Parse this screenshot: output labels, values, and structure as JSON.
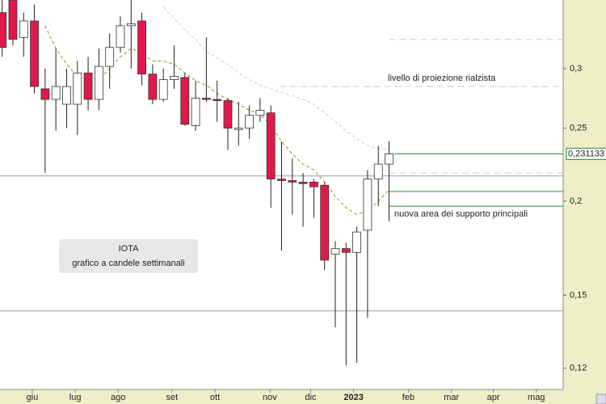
{
  "chart_data": {
    "type": "candlestick",
    "x": [
      0,
      1,
      2,
      3,
      4,
      5,
      6,
      7,
      8,
      9,
      10,
      11,
      12,
      13,
      14,
      15,
      16,
      17,
      18,
      19,
      20,
      21,
      22,
      23,
      24,
      25,
      26,
      27,
      28,
      29,
      30,
      31,
      32,
      33,
      34,
      35,
      36
    ],
    "open": [
      0.356,
      0.37,
      0.33,
      0.347,
      0.282,
      0.273,
      0.269,
      0.269,
      0.296,
      0.273,
      0.302,
      0.32,
      0.342,
      0.347,
      0.295,
      0.273,
      0.29,
      0.292,
      0.252,
      0.274,
      0.273,
      0.272,
      0.249,
      0.25,
      0.26,
      0.262,
      0.214,
      0.213,
      0.212,
      0.212,
      0.21,
      0.17,
      0.173,
      0.171,
      0.183,
      0.214,
      0.224
    ],
    "high": [
      0.37,
      0.37,
      0.356,
      0.365,
      0.3,
      0.319,
      0.3,
      0.307,
      0.311,
      0.319,
      0.334,
      0.352,
      0.37,
      0.356,
      0.304,
      0.3,
      0.322,
      0.296,
      0.289,
      0.33,
      0.289,
      0.274,
      0.271,
      0.268,
      0.274,
      0.268,
      0.24,
      0.228,
      0.218,
      0.214,
      0.212,
      0.177,
      0.176,
      0.185,
      0.22,
      0.237,
      0.24
    ],
    "low": [
      0.311,
      0.322,
      0.311,
      0.278,
      0.218,
      0.248,
      0.25,
      0.245,
      0.264,
      0.264,
      0.282,
      0.315,
      0.3,
      0.285,
      0.269,
      0.271,
      0.282,
      0.252,
      0.248,
      0.271,
      0.255,
      0.234,
      0.237,
      0.242,
      0.255,
      0.196,
      0.172,
      0.192,
      0.185,
      0.19,
      0.162,
      0.136,
      0.121,
      0.122,
      0.14,
      0.197,
      0.188
    ],
    "close": [
      0.32,
      0.328,
      0.347,
      0.284,
      0.273,
      0.284,
      0.284,
      0.296,
      0.273,
      0.302,
      0.32,
      0.342,
      0.344,
      0.295,
      0.273,
      0.29,
      0.293,
      0.253,
      0.274,
      0.273,
      0.272,
      0.25,
      0.25,
      0.26,
      0.264,
      0.214,
      0.213,
      0.212,
      0.211,
      0.209,
      0.167,
      0.173,
      0.171,
      0.182,
      0.214,
      0.224,
      0.231133
    ],
    "up_color": "#ffffff",
    "down_color": "#e0194b",
    "lines": [
      {
        "color": "#a8a040",
        "values": [
          null,
          null,
          null,
          null,
          0.342,
          0.319,
          0.304,
          0.293,
          0.289,
          0.29,
          0.3,
          0.311,
          0.319,
          0.315,
          0.307,
          0.307,
          0.304,
          0.296,
          0.289,
          0.285,
          0.278,
          0.273,
          0.269,
          0.264,
          0.261,
          0.252,
          0.24,
          0.231,
          0.224,
          0.22,
          0.212,
          0.203,
          0.196,
          0.192,
          0.194,
          0.2,
          0.207
        ]
      },
      {
        "color": "#f0c8c8",
        "values": [
          null,
          null,
          null,
          null,
          null,
          null,
          null,
          null,
          null,
          null,
          null,
          null,
          null,
          null,
          null,
          0.362,
          0.35,
          0.338,
          0.328,
          0.316,
          0.31,
          0.304,
          0.296,
          0.29,
          0.285,
          0.282,
          0.279,
          0.276,
          0.273,
          0.269,
          0.262,
          0.255,
          0.248,
          0.242,
          0.237,
          0.235,
          0.234
        ]
      }
    ],
    "levels": [
      {
        "value": 0.216,
        "from_x": -0.2,
        "color": "#999999",
        "dash": false
      },
      {
        "value": 0.143,
        "from_x": -0.2,
        "color": "#999999",
        "dash": false
      },
      {
        "value": 0.328,
        "from_x": 36,
        "color": "#cccccc",
        "dash": true
      },
      {
        "value": 0.284,
        "from_x": 25.8,
        "color": "#cccccc",
        "dash": true
      },
      {
        "value": 0.218,
        "from_x": 36,
        "color": "#cccccc",
        "dash": true
      },
      {
        "value": 0.231133,
        "from_x": 36.5,
        "color": "#2e8b2e",
        "dash": false
      },
      {
        "value": 0.206,
        "from_x": 36,
        "color": "#2e8b2e",
        "dash": false
      },
      {
        "value": 0.197,
        "from_x": 36,
        "color": "#2e8b2e",
        "dash": false
      }
    ],
    "price_tag": {
      "value": 0.231133,
      "label": "0,231133"
    },
    "annotations": [
      "livello di proiezione rialzista",
      "nuova area dei supporto principali"
    ],
    "box_text": [
      "IOTA",
      "grafico a candele settimanali"
    ],
    "xlim": [
      -0.2,
      52.2
    ],
    "xticks": [
      {
        "value": 2.8,
        "label": "giu"
      },
      {
        "value": 6.8,
        "label": "lug"
      },
      {
        "value": 10.8,
        "label": "ago"
      },
      {
        "value": 15.8,
        "label": "set"
      },
      {
        "value": 19.8,
        "label": "ott"
      },
      {
        "value": 24.9,
        "label": "nov"
      },
      {
        "value": 28.7,
        "label": "dic"
      },
      {
        "value": 32.7,
        "label": "2023"
      },
      {
        "value": 37.8,
        "label": "feb"
      },
      {
        "value": 41.8,
        "label": "mar"
      },
      {
        "value": 45.7,
        "label": "apr"
      },
      {
        "value": 49.7,
        "label": "mag"
      }
    ],
    "ylim": [
      0.113,
      0.37
    ],
    "log_y": true,
    "yticks": [
      {
        "value": 0.12,
        "label": "0,12"
      },
      {
        "value": 0.15,
        "label": "0,15"
      },
      {
        "value": 0.2,
        "label": "0,2"
      },
      {
        "value": 0.25,
        "label": "0,25"
      },
      {
        "value": 0.3,
        "label": "0,3"
      }
    ]
  }
}
